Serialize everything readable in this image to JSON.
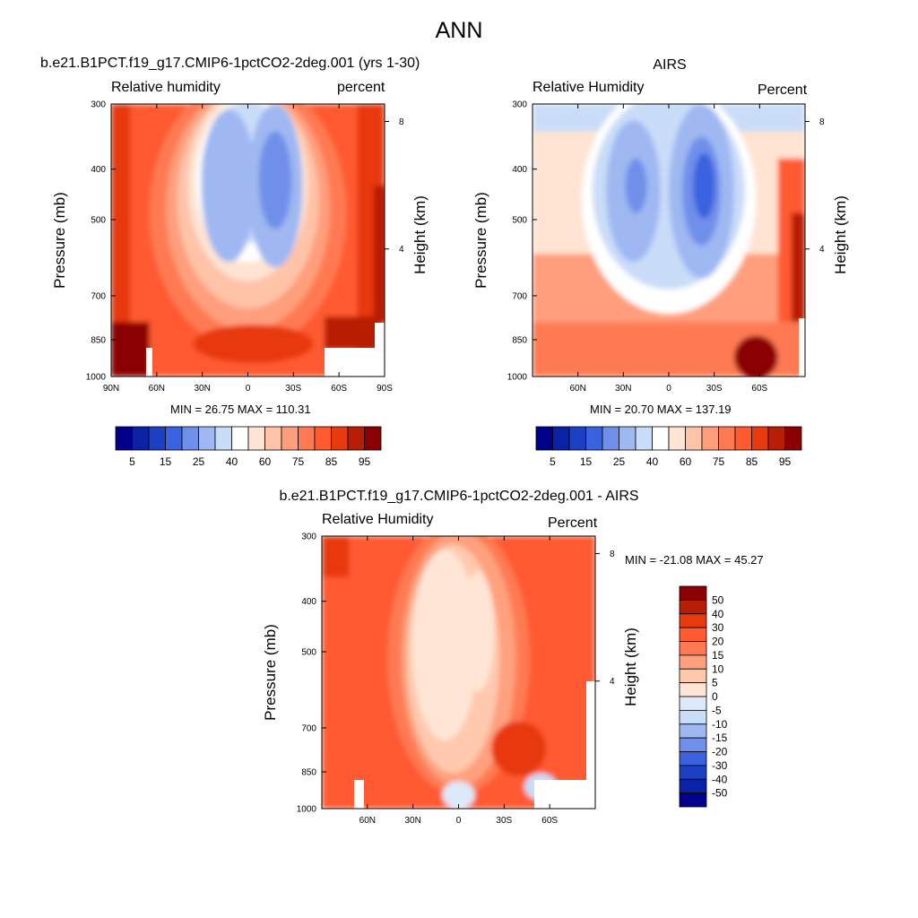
{
  "figure": {
    "title": "ANN"
  },
  "colors": {
    "rh_levels": [
      "#00008b",
      "#0b21a6",
      "#1c3fc4",
      "#3a62df",
      "#6f8fea",
      "#9fb8f2",
      "#c9dcf8",
      "#ffffff",
      "#ffe3d3",
      "#ffc3a8",
      "#ff9e7c",
      "#ff7a52",
      "#ff5a30",
      "#e8390f",
      "#b81e05",
      "#8b0000"
    ],
    "diff_levels": [
      "#00008b",
      "#0b21a6",
      "#1c3fc4",
      "#3a62df",
      "#6f8fea",
      "#9fb8f2",
      "#c9dcf8",
      "#dde9fb",
      "#ffe5d6",
      "#ffc9ae",
      "#ffa07e",
      "#ff7a52",
      "#ff5a30",
      "#e8390f",
      "#b81e05",
      "#8b0000"
    ]
  },
  "chart_data": [
    {
      "type": "heatmap",
      "title": "b.e21.B1PCT.f19_g17.CMIP6-1pctCO2-2deg.001 (yrs 1-30)",
      "subtitle_left": "Relative humidity",
      "subtitle_right": "percent",
      "ylabel": "Pressure (mb)",
      "ylabel_right": "Height (km)",
      "y_ticks": [
        "300",
        "400",
        "500",
        "700",
        "850",
        "1000"
      ],
      "y_right_ticks": [
        "8",
        "4"
      ],
      "x_ticks": [
        "90N",
        "60N",
        "30N",
        "0",
        "30S",
        "60S",
        "90S"
      ],
      "min_max": "MIN =  26.75   MAX = 110.31",
      "min": 26.75,
      "max": 110.31,
      "colorbar_labels": [
        "5",
        "15",
        "25",
        "40",
        "60",
        "75",
        "85",
        "95"
      ]
    },
    {
      "type": "heatmap",
      "title": "AIRS",
      "subtitle_left": "Relative Humidity",
      "subtitle_right": "Percent",
      "ylabel": "Pressure (mb)",
      "ylabel_right": "Height (km)",
      "y_ticks": [
        "300",
        "400",
        "500",
        "700",
        "850",
        "1000"
      ],
      "y_right_ticks": [
        "8",
        "4"
      ],
      "x_ticks": [
        "60N",
        "30N",
        "0",
        "30S",
        "60S"
      ],
      "min_max": "MIN =  20.70   MAX = 137.19",
      "min": 20.7,
      "max": 137.19,
      "colorbar_labels": [
        "5",
        "15",
        "25",
        "40",
        "60",
        "75",
        "85",
        "95"
      ]
    },
    {
      "type": "heatmap",
      "title": "b.e21.B1PCT.f19_g17.CMIP6-1pctCO2-2deg.001 - AIRS",
      "subtitle_left": "Relative Humidity",
      "subtitle_right": "Percent",
      "ylabel": "Pressure (mb)",
      "ylabel_right": "Height (km)",
      "y_ticks": [
        "300",
        "400",
        "500",
        "700",
        "850",
        "1000"
      ],
      "y_right_ticks": [
        "8",
        "4"
      ],
      "x_ticks": [
        "60N",
        "30N",
        "0",
        "30S",
        "60S"
      ],
      "min_max": "MIN = -21.08   MAX =  45.27",
      "min": -21.08,
      "max": 45.27,
      "colorbar_labels": [
        "50",
        "40",
        "30",
        "20",
        "15",
        "10",
        "5",
        "0",
        "-5",
        "-10",
        "-15",
        "-20",
        "-30",
        "-40",
        "-50"
      ]
    }
  ]
}
